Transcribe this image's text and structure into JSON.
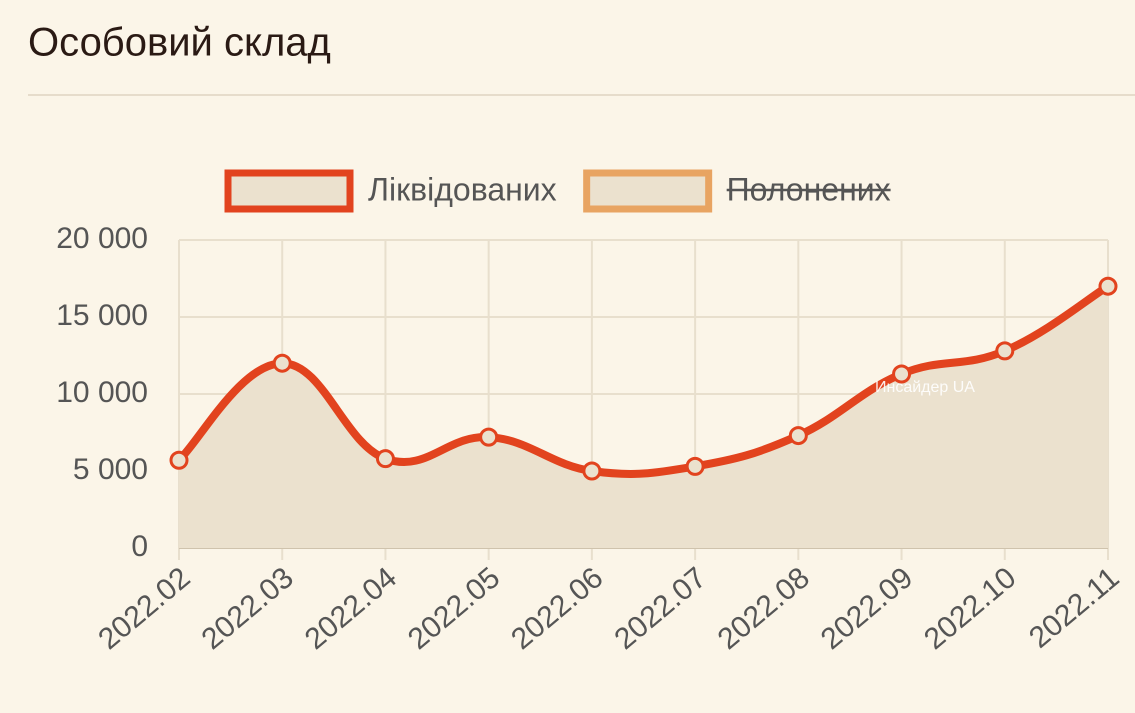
{
  "chart_data": {
    "type": "line",
    "title": "Особовий склад",
    "categories": [
      "2022.02",
      "2022.03",
      "2022.04",
      "2022.05",
      "2022.06",
      "2022.07",
      "2022.08",
      "2022.09",
      "2022.10",
      "2022.11"
    ],
    "series": [
      {
        "name": "Ліквідованих",
        "color": "#e2431e",
        "values": [
          5700,
          12000,
          5800,
          7200,
          5000,
          5300,
          7300,
          11300,
          12800,
          17000
        ]
      },
      {
        "name": "Полонених",
        "color": "#e8a462",
        "hidden": true
      }
    ],
    "area_color": "#ebe1ce",
    "ylim": [
      0,
      20000
    ],
    "yticks": [
      {
        "value": 0,
        "label": "0"
      },
      {
        "value": 5000,
        "label": "5 000"
      },
      {
        "value": 10000,
        "label": "10 000"
      },
      {
        "value": 15000,
        "label": "15 000"
      },
      {
        "value": 20000,
        "label": "20 000"
      }
    ],
    "grid": true,
    "annotation": "Инсайдер UA"
  }
}
